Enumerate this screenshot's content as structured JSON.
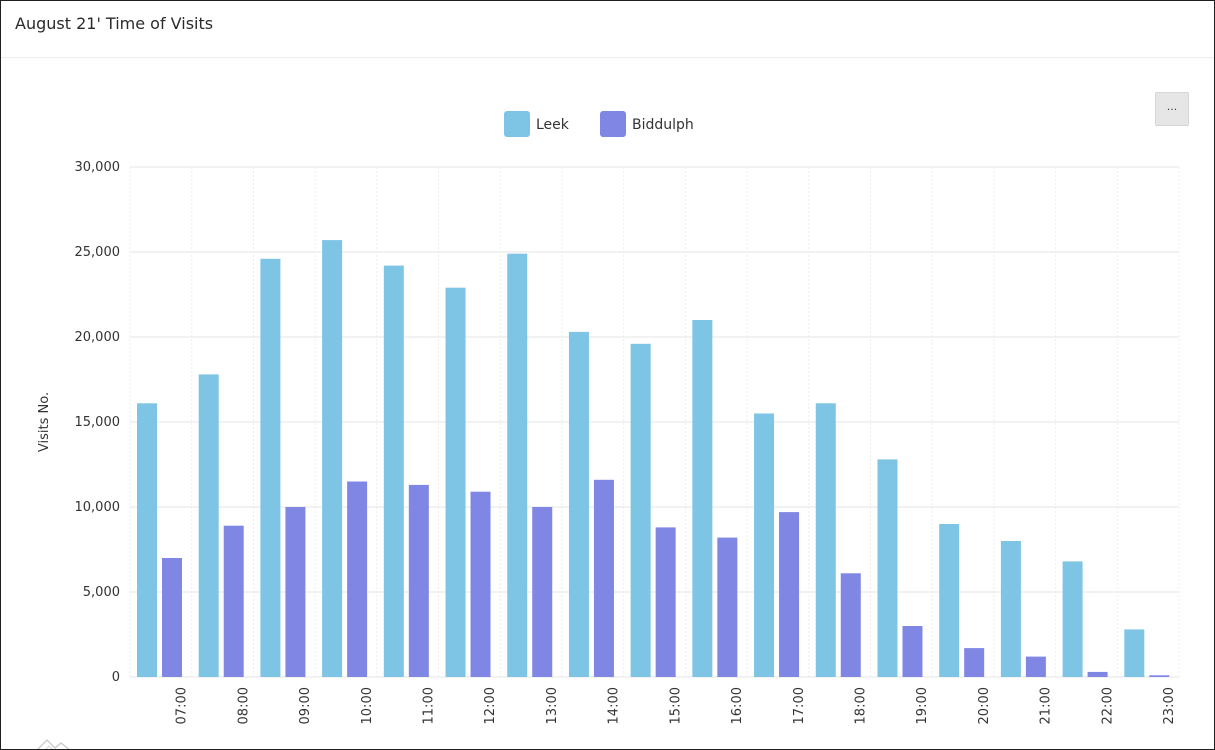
{
  "card": {
    "title": "August 21' Time of Visits",
    "menu_label": "..."
  },
  "colors": {
    "leek": "#7ec4e4",
    "biddulph": "#7f86e4",
    "grid": "#e6e6e6"
  },
  "icons": {
    "menu": "ellipsis-icon",
    "watermark": "mountain-logo-icon"
  },
  "chart_data": {
    "type": "bar",
    "title": "",
    "xlabel": "",
    "ylabel": "Visits No.",
    "ylim": [
      0,
      30000
    ],
    "yticks": [
      "0",
      "5,000",
      "10,000",
      "15,000",
      "20,000",
      "25,000",
      "30,000"
    ],
    "categories": [
      "07:00",
      "08:00",
      "09:00",
      "10:00",
      "11:00",
      "12:00",
      "13:00",
      "14:00",
      "15:00",
      "16:00",
      "17:00",
      "18:00",
      "19:00",
      "20:00",
      "21:00",
      "22:00",
      "23:00"
    ],
    "legend_position": "top-center",
    "grid": true,
    "series": [
      {
        "name": "Leek",
        "values": [
          16100,
          17800,
          24600,
          25700,
          24200,
          22900,
          24900,
          20300,
          19600,
          21000,
          15500,
          16100,
          12800,
          9000,
          8000,
          6800,
          2800
        ]
      },
      {
        "name": "Biddulph",
        "values": [
          7000,
          8900,
          10000,
          11500,
          11300,
          10900,
          10000,
          11600,
          8800,
          8200,
          9700,
          6100,
          3000,
          1700,
          1200,
          300,
          100
        ]
      }
    ]
  }
}
